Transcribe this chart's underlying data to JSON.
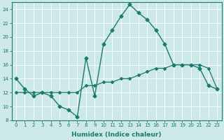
{
  "xlabel": "Humidex (Indice chaleur)",
  "xlim": [
    -0.5,
    23.5
  ],
  "ylim": [
    8,
    25
  ],
  "yticks": [
    8,
    10,
    12,
    14,
    16,
    18,
    20,
    22,
    24
  ],
  "xticks": [
    0,
    1,
    2,
    3,
    4,
    5,
    6,
    7,
    8,
    9,
    10,
    11,
    12,
    13,
    14,
    15,
    16,
    17,
    18,
    19,
    20,
    21,
    22,
    23
  ],
  "bg_color": "#cce8e8",
  "line_color": "#1a7a6e",
  "line1_x": [
    0,
    1,
    2,
    3,
    4,
    5,
    6,
    7,
    8,
    9,
    10,
    11,
    12,
    13,
    14,
    15,
    16,
    17,
    18,
    19,
    20,
    21,
    22,
    23
  ],
  "line1_y": [
    14,
    12.5,
    11.5,
    12.0,
    11.5,
    10.0,
    9.5,
    8.5,
    17.0,
    11.5,
    19.0,
    21.0,
    23.0,
    24.7,
    23.5,
    22.5,
    21.0,
    19.0,
    16.0,
    16.0,
    16.0,
    15.5,
    13.0,
    12.5
  ],
  "line2_x": [
    0,
    1,
    2,
    3,
    4,
    5,
    6,
    7,
    8,
    9,
    10,
    11,
    12,
    13,
    14,
    15,
    16,
    17,
    18,
    19,
    20,
    21,
    22,
    23
  ],
  "line2_y": [
    12.0,
    12.0,
    12.0,
    12.0,
    12.0,
    12.0,
    12.0,
    12.0,
    13.0,
    13.0,
    13.5,
    13.5,
    14.0,
    14.0,
    14.5,
    15.0,
    15.5,
    15.5,
    16.0,
    16.0,
    16.0,
    16.0,
    15.5,
    12.5
  ]
}
